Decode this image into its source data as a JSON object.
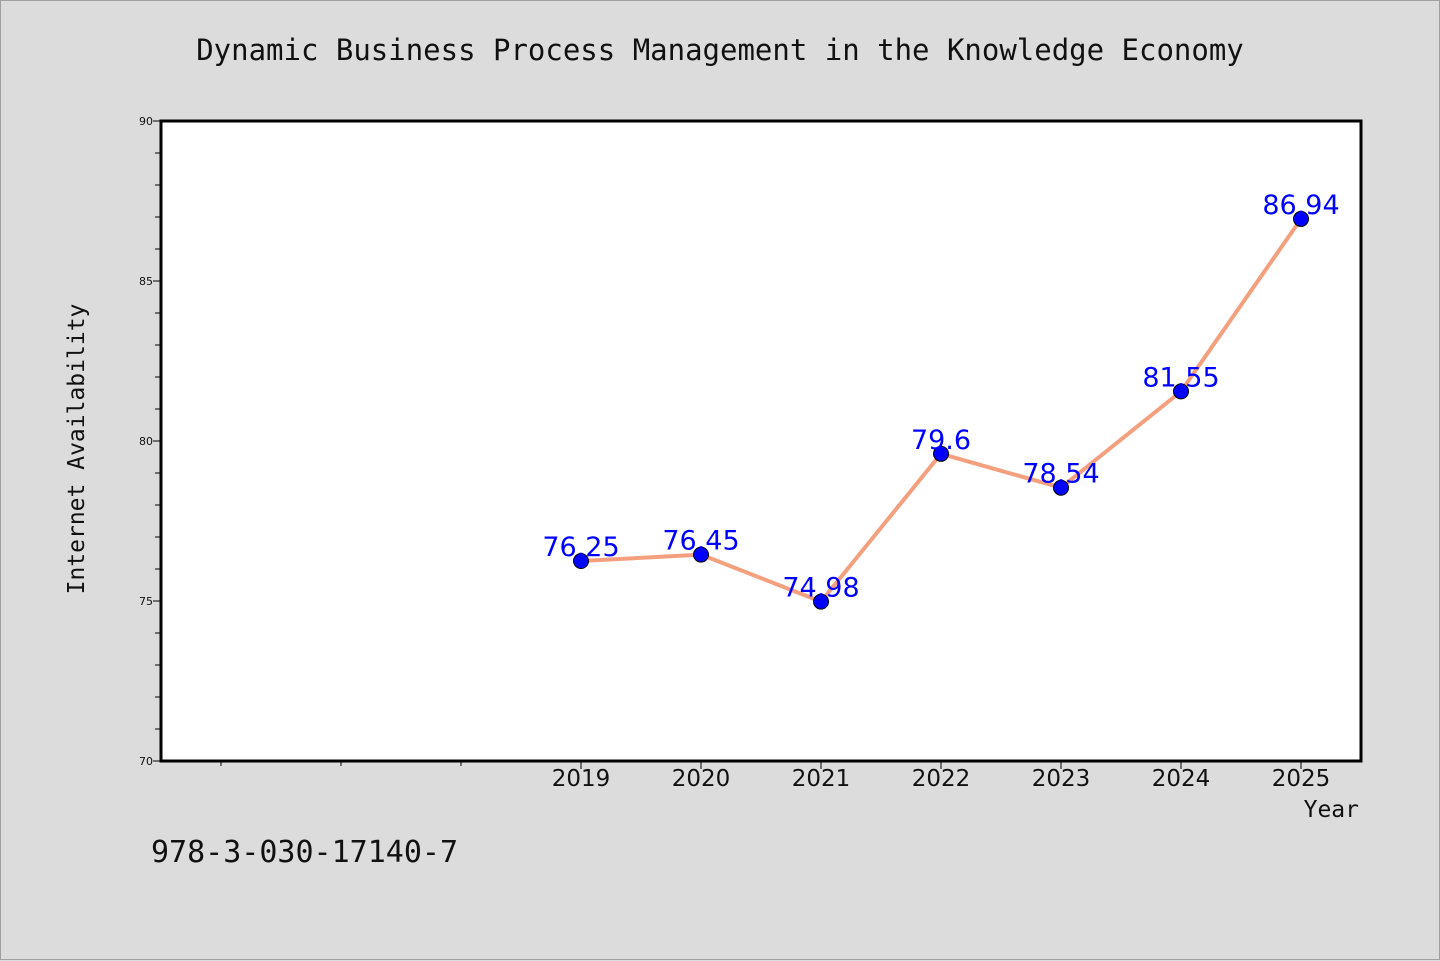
{
  "chart_data": {
    "type": "line",
    "title": "Dynamic Business Process Management in the Knowledge Economy",
    "xlabel": "Year",
    "ylabel": "Internet Availability",
    "categories": [
      "2019",
      "2020",
      "2021",
      "2022",
      "2023",
      "2024",
      "2025"
    ],
    "values": [
      76.25,
      76.45,
      74.98,
      79.6,
      78.54,
      81.55,
      86.94
    ],
    "data_labels": [
      "76.25",
      "76.45",
      "74.98",
      "79.6",
      "78.54",
      "81.55",
      "86.94"
    ],
    "ylim": [
      70,
      90
    ],
    "yticks": [
      70,
      75,
      80,
      85,
      90
    ],
    "grid": false,
    "line_color": "#f4a07e",
    "marker_color": "#0000ff",
    "label_color": "#0000ff"
  },
  "footer": {
    "isbn": "978-3-030-17140-7"
  }
}
